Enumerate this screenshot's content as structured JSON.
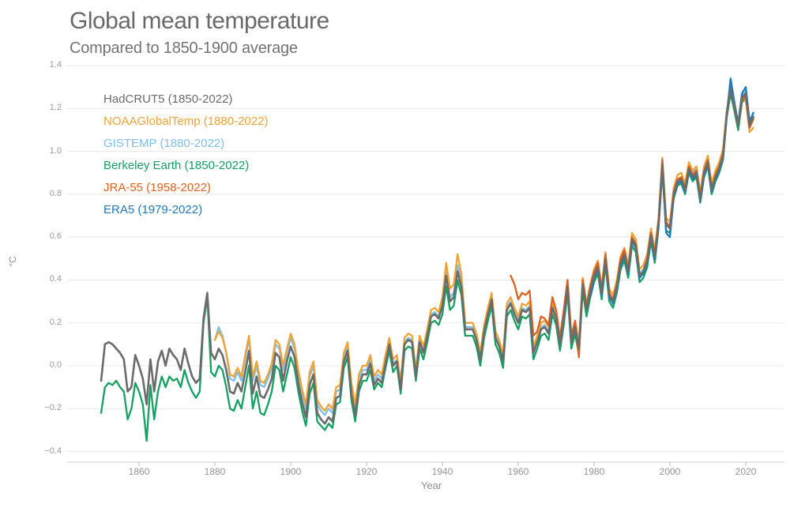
{
  "header": {
    "title": "Global mean temperature",
    "subtitle": "Compared to 1850-1900 average"
  },
  "axes": {
    "y_unit": "°C",
    "x_label": "Year",
    "y_tick_labels": [
      "1.4",
      "1.2",
      "1.0",
      "0.8",
      "0.6",
      "0.4",
      "0.2",
      "0.0",
      "−0.2",
      "−0.4"
    ],
    "y_tick_values": [
      1.4,
      1.2,
      1.0,
      0.8,
      0.6,
      0.4,
      0.2,
      0.0,
      -0.2,
      -0.4
    ],
    "x_tick_labels": [
      "1860",
      "1880",
      "1900",
      "1920",
      "1940",
      "1960",
      "1980",
      "2000",
      "2020"
    ],
    "x_tick_values": [
      1860,
      1880,
      1900,
      1920,
      1940,
      1960,
      1980,
      2000,
      2020
    ]
  },
  "legend": {
    "items": [
      {
        "label": "HadCRUT5 (1850-2022)",
        "color": "#6b6b6b"
      },
      {
        "label": "NOAAGlobalTemp (1880-2022)",
        "color": "#efa335"
      },
      {
        "label": "GISTEMP (1880-2022)",
        "color": "#7fbfe8"
      },
      {
        "label": "Berkeley Earth (1850-2022)",
        "color": "#15a061"
      },
      {
        "label": "JRA-55 (1958-2022)",
        "color": "#e0611e"
      },
      {
        "label": "ERA5 (1979-2022)",
        "color": "#2277bd"
      }
    ]
  },
  "chart_data": {
    "type": "line",
    "title": "Global mean temperature",
    "subtitle": "Compared to 1850-1900 average",
    "xlabel": "Year",
    "ylabel": "°C",
    "xlim": [
      1850,
      2022
    ],
    "ylim": [
      -0.4,
      1.4
    ],
    "grid": "horizontal gridlines every 0.2 °C",
    "legend_position": "top-left colored text",
    "series": [
      {
        "name": "HadCRUT5",
        "range": "1850-2022",
        "color": "#6b6b6b",
        "start_year": 1850,
        "values": [
          -0.07,
          0.1,
          0.11,
          0.1,
          0.08,
          0.06,
          0.03,
          -0.12,
          -0.1,
          0.05,
          0.0,
          -0.06,
          -0.18,
          0.03,
          -0.12,
          0.02,
          0.07,
          0.0,
          0.08,
          0.05,
          0.03,
          -0.02,
          0.08,
          0.01,
          -0.05,
          -0.08,
          -0.06,
          0.22,
          0.34,
          0.06,
          0.03,
          0.08,
          0.05,
          -0.02,
          -0.12,
          -0.13,
          -0.08,
          -0.12,
          -0.03,
          0.07,
          -0.13,
          -0.05,
          -0.14,
          -0.15,
          -0.11,
          -0.06,
          0.06,
          0.04,
          -0.07,
          0.02,
          0.09,
          0.04,
          -0.08,
          -0.17,
          -0.24,
          -0.09,
          -0.04,
          -0.22,
          -0.25,
          -0.27,
          -0.24,
          -0.26,
          -0.15,
          -0.14,
          0.02,
          0.07,
          -0.13,
          -0.23,
          -0.09,
          -0.04,
          -0.04,
          0.01,
          -0.09,
          -0.06,
          -0.08,
          0.01,
          0.1,
          0.0,
          0.02,
          -0.11,
          0.1,
          0.12,
          0.11,
          -0.05,
          0.11,
          0.06,
          0.14,
          0.23,
          0.24,
          0.22,
          0.28,
          0.42,
          0.3,
          0.32,
          0.44,
          0.37,
          0.17,
          0.17,
          0.17,
          0.12,
          0.03,
          0.16,
          0.24,
          0.31,
          0.13,
          0.09,
          0.02,
          0.26,
          0.29,
          0.24,
          0.2,
          0.26,
          0.25,
          0.27,
          0.06,
          0.11,
          0.17,
          0.18,
          0.15,
          0.27,
          0.22,
          0.1,
          0.22,
          0.37,
          0.11,
          0.18,
          0.08,
          0.38,
          0.26,
          0.35,
          0.42,
          0.46,
          0.34,
          0.5,
          0.33,
          0.3,
          0.37,
          0.48,
          0.52,
          0.44,
          0.59,
          0.56,
          0.42,
          0.44,
          0.49,
          0.61,
          0.51,
          0.66,
          0.94,
          0.66,
          0.64,
          0.8,
          0.86,
          0.87,
          0.82,
          0.92,
          0.88,
          0.9,
          0.78,
          0.9,
          0.95,
          0.82,
          0.88,
          0.92,
          0.98,
          1.18,
          1.29,
          1.21,
          1.12,
          1.25,
          1.27,
          1.12,
          1.16
        ]
      },
      {
        "name": "NOAAGlobalTemp",
        "range": "1880-2022",
        "color": "#efa335",
        "start_year": 1880,
        "values": [
          0.12,
          0.16,
          0.13,
          0.06,
          -0.04,
          -0.05,
          -0.01,
          -0.05,
          0.05,
          0.14,
          -0.05,
          0.02,
          -0.07,
          -0.08,
          -0.04,
          0.01,
          0.12,
          0.1,
          0.0,
          0.08,
          0.15,
          0.1,
          -0.02,
          -0.11,
          -0.18,
          -0.03,
          0.02,
          -0.16,
          -0.19,
          -0.21,
          -0.18,
          -0.2,
          -0.1,
          -0.09,
          0.06,
          0.11,
          -0.08,
          -0.18,
          -0.04,
          0.0,
          0.0,
          0.05,
          -0.05,
          -0.02,
          -0.04,
          0.05,
          0.13,
          0.03,
          0.05,
          -0.07,
          0.13,
          0.15,
          0.14,
          -0.02,
          0.14,
          0.09,
          0.17,
          0.26,
          0.27,
          0.25,
          0.32,
          0.48,
          0.36,
          0.38,
          0.52,
          0.43,
          0.2,
          0.2,
          0.2,
          0.15,
          0.06,
          0.19,
          0.27,
          0.34,
          0.16,
          0.12,
          0.05,
          0.29,
          0.32,
          0.27,
          0.23,
          0.29,
          0.28,
          0.3,
          0.09,
          0.14,
          0.2,
          0.21,
          0.18,
          0.3,
          0.25,
          0.13,
          0.25,
          0.4,
          0.14,
          0.21,
          0.11,
          0.41,
          0.29,
          0.38,
          0.45,
          0.49,
          0.37,
          0.53,
          0.36,
          0.33,
          0.4,
          0.51,
          0.55,
          0.47,
          0.62,
          0.59,
          0.45,
          0.47,
          0.52,
          0.64,
          0.54,
          0.69,
          0.97,
          0.69,
          0.67,
          0.83,
          0.89,
          0.9,
          0.85,
          0.95,
          0.91,
          0.93,
          0.81,
          0.93,
          0.98,
          0.85,
          0.91,
          0.95,
          1.01,
          1.19,
          1.27,
          1.19,
          1.1,
          1.23,
          1.24,
          1.09,
          1.11
        ]
      },
      {
        "name": "GISTEMP",
        "range": "1880-2022",
        "color": "#7fbfe8",
        "start_year": 1880,
        "values": [
          0.12,
          0.18,
          0.14,
          0.06,
          -0.06,
          -0.07,
          -0.03,
          -0.07,
          0.03,
          0.13,
          -0.07,
          0.0,
          -0.09,
          -0.1,
          -0.06,
          -0.01,
          0.1,
          0.08,
          -0.02,
          0.06,
          0.13,
          0.08,
          -0.04,
          -0.13,
          -0.2,
          -0.05,
          0.0,
          -0.18,
          -0.21,
          -0.23,
          -0.2,
          -0.22,
          -0.12,
          -0.11,
          0.04,
          0.09,
          -0.1,
          -0.2,
          -0.06,
          -0.02,
          -0.02,
          0.03,
          -0.07,
          -0.04,
          -0.06,
          0.03,
          0.11,
          0.01,
          0.03,
          -0.09,
          0.11,
          0.13,
          0.12,
          -0.04,
          0.12,
          0.07,
          0.15,
          0.24,
          0.25,
          0.23,
          0.29,
          0.44,
          0.32,
          0.34,
          0.47,
          0.39,
          0.18,
          0.18,
          0.18,
          0.13,
          0.04,
          0.17,
          0.25,
          0.32,
          0.14,
          0.1,
          0.03,
          0.27,
          0.3,
          0.25,
          0.21,
          0.27,
          0.26,
          0.28,
          0.07,
          0.12,
          0.18,
          0.19,
          0.16,
          0.28,
          0.23,
          0.11,
          0.23,
          0.38,
          0.12,
          0.19,
          0.09,
          0.39,
          0.27,
          0.36,
          0.43,
          0.47,
          0.35,
          0.51,
          0.34,
          0.31,
          0.38,
          0.49,
          0.53,
          0.45,
          0.6,
          0.57,
          0.43,
          0.45,
          0.5,
          0.62,
          0.52,
          0.67,
          0.95,
          0.67,
          0.65,
          0.81,
          0.87,
          0.88,
          0.83,
          0.94,
          0.9,
          0.92,
          0.8,
          0.92,
          0.97,
          0.84,
          0.9,
          0.94,
          1.0,
          1.19,
          1.3,
          1.22,
          1.12,
          1.26,
          1.28,
          1.13,
          1.17
        ]
      },
      {
        "name": "Berkeley Earth",
        "range": "1850-2022",
        "color": "#15a061",
        "start_year": 1850,
        "values": [
          -0.22,
          -0.1,
          -0.08,
          -0.09,
          -0.07,
          -0.1,
          -0.12,
          -0.25,
          -0.2,
          -0.08,
          -0.12,
          -0.18,
          -0.35,
          -0.09,
          -0.25,
          -0.12,
          -0.05,
          -0.1,
          -0.05,
          -0.07,
          -0.06,
          -0.1,
          -0.02,
          -0.08,
          -0.12,
          -0.15,
          -0.12,
          0.2,
          0.32,
          -0.03,
          -0.05,
          0.0,
          -0.02,
          -0.1,
          -0.2,
          -0.21,
          -0.16,
          -0.2,
          -0.1,
          0.0,
          -0.2,
          -0.12,
          -0.22,
          -0.23,
          -0.18,
          -0.12,
          0.0,
          -0.02,
          -0.12,
          -0.04,
          0.04,
          -0.01,
          -0.12,
          -0.21,
          -0.28,
          -0.13,
          -0.08,
          -0.26,
          -0.28,
          -0.3,
          -0.27,
          -0.29,
          -0.18,
          -0.17,
          -0.01,
          0.04,
          -0.16,
          -0.26,
          -0.12,
          -0.07,
          -0.07,
          -0.02,
          -0.11,
          -0.08,
          -0.1,
          -0.01,
          0.07,
          -0.03,
          0.0,
          -0.13,
          0.07,
          0.09,
          0.08,
          -0.07,
          0.08,
          0.03,
          0.11,
          0.2,
          0.21,
          0.19,
          0.24,
          0.37,
          0.26,
          0.28,
          0.4,
          0.33,
          0.14,
          0.14,
          0.14,
          0.09,
          0.0,
          0.13,
          0.21,
          0.28,
          0.1,
          0.06,
          -0.01,
          0.23,
          0.26,
          0.21,
          0.17,
          0.23,
          0.22,
          0.24,
          0.03,
          0.08,
          0.14,
          0.15,
          0.12,
          0.24,
          0.19,
          0.07,
          0.19,
          0.34,
          0.08,
          0.15,
          0.05,
          0.35,
          0.23,
          0.32,
          0.39,
          0.43,
          0.31,
          0.47,
          0.3,
          0.27,
          0.34,
          0.45,
          0.49,
          0.41,
          0.56,
          0.53,
          0.39,
          0.41,
          0.46,
          0.58,
          0.48,
          0.64,
          0.91,
          0.63,
          0.62,
          0.78,
          0.84,
          0.85,
          0.8,
          0.9,
          0.86,
          0.88,
          0.76,
          0.88,
          0.93,
          0.8,
          0.86,
          0.9,
          0.96,
          1.16,
          1.27,
          1.19,
          1.1,
          1.23,
          1.26,
          1.11,
          1.15
        ]
      },
      {
        "name": "JRA-55",
        "range": "1958-2022",
        "color": "#e0611e",
        "start_year": 1958,
        "values": [
          0.42,
          0.38,
          0.31,
          0.34,
          0.33,
          0.35,
          0.14,
          0.16,
          0.23,
          0.22,
          0.19,
          0.32,
          0.26,
          0.13,
          0.26,
          0.4,
          0.14,
          0.21,
          0.04,
          0.4,
          0.28,
          0.37,
          0.44,
          0.48,
          0.35,
          0.52,
          0.34,
          0.31,
          0.38,
          0.5,
          0.54,
          0.45,
          0.6,
          0.57,
          0.42,
          0.44,
          0.5,
          0.62,
          0.52,
          0.68,
          0.96,
          0.67,
          0.65,
          0.81,
          0.87,
          0.88,
          0.83,
          0.93,
          0.89,
          0.91,
          0.79,
          0.91,
          0.96,
          0.83,
          0.89,
          0.93,
          0.99,
          1.18,
          1.31,
          1.22,
          1.12,
          1.24,
          1.26,
          1.11,
          1.15
        ]
      },
      {
        "name": "ERA5",
        "range": "1979-2022",
        "color": "#2277bd",
        "start_year": 1979,
        "values": [
          0.32,
          0.41,
          0.45,
          0.33,
          0.49,
          0.32,
          0.29,
          0.36,
          0.47,
          0.51,
          0.43,
          0.58,
          0.55,
          0.41,
          0.43,
          0.48,
          0.6,
          0.5,
          0.65,
          0.93,
          0.62,
          0.6,
          0.79,
          0.85,
          0.86,
          0.81,
          0.91,
          0.87,
          0.89,
          0.77,
          0.89,
          0.94,
          0.81,
          0.87,
          0.91,
          0.97,
          1.17,
          1.34,
          1.23,
          1.13,
          1.27,
          1.3,
          1.14,
          1.18
        ]
      }
    ]
  }
}
